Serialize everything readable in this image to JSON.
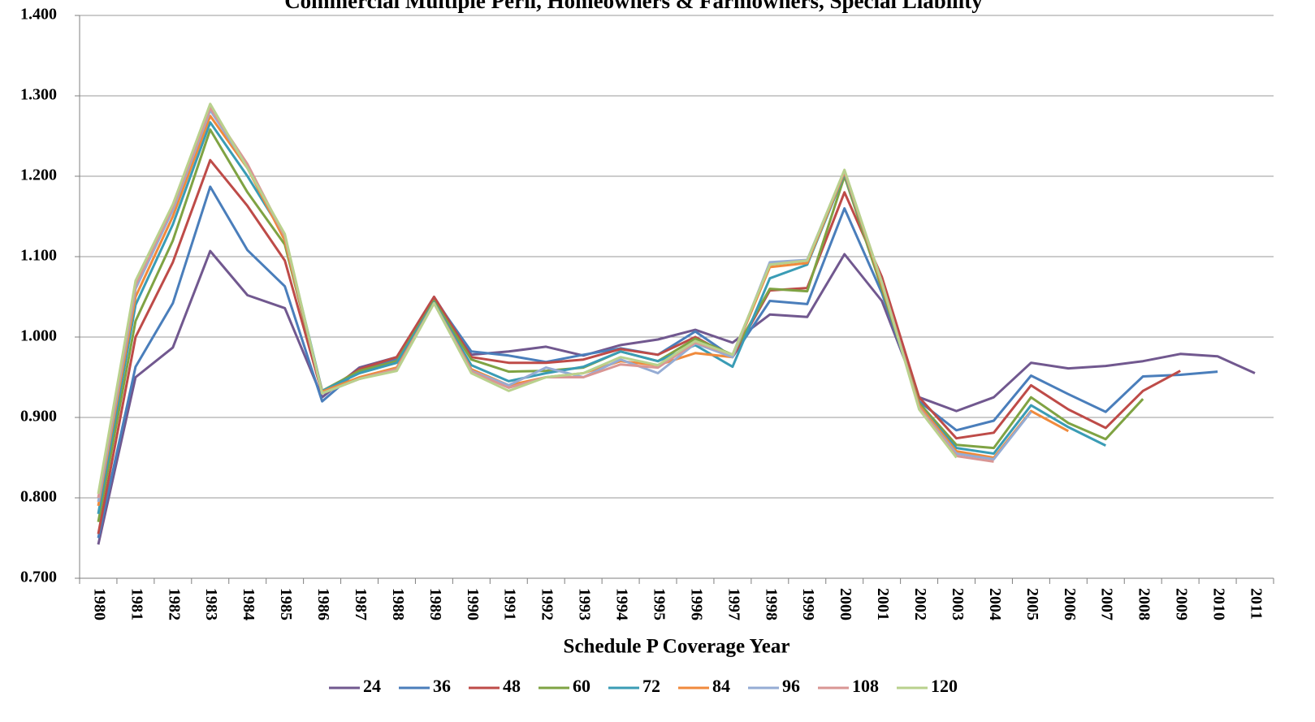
{
  "chart_data": {
    "type": "line",
    "title": "Commercial Multiple Peril, Homeowners & Farmowners, Special Liability",
    "x_label": "Schedule P Coverage Year",
    "categories": [
      "1980",
      "1981",
      "1982",
      "1983",
      "1984",
      "1985",
      "1986",
      "1987",
      "1988",
      "1989",
      "1990",
      "1991",
      "1992",
      "1993",
      "1994",
      "1995",
      "1996",
      "1997",
      "1998",
      "1999",
      "2000",
      "2001",
      "2002",
      "2003",
      "2004",
      "2005",
      "2006",
      "2007",
      "2008",
      "2009",
      "2010",
      "2011"
    ],
    "ylim": [
      0.7,
      1.4
    ],
    "yticks": [
      {
        "value": 0.7,
        "label": "0.700"
      },
      {
        "value": 0.8,
        "label": "0.800"
      },
      {
        "value": 0.9,
        "label": "0.900"
      },
      {
        "value": 1.0,
        "label": "1.000"
      },
      {
        "value": 1.1,
        "label": "1.100"
      },
      {
        "value": 1.2,
        "label": "1.200"
      },
      {
        "value": 1.3,
        "label": "1.300"
      },
      {
        "value": 1.4,
        "label": "1.400"
      }
    ],
    "grid": true,
    "legend": "bottom",
    "series": [
      {
        "name": "24",
        "color": "#71588f",
        "values": [
          0.742,
          0.95,
          0.987,
          1.107,
          1.052,
          1.036,
          0.925,
          0.962,
          0.975,
          1.05,
          0.978,
          0.982,
          0.988,
          0.977,
          0.99,
          0.997,
          1.009,
          0.993,
          1.028,
          1.025,
          1.103,
          1.045,
          0.925,
          0.908,
          0.925,
          0.968,
          0.961,
          0.964,
          0.97,
          0.979,
          0.976,
          0.955
        ]
      },
      {
        "name": "36",
        "color": "#4a7ebb",
        "values": [
          0.75,
          0.963,
          1.042,
          1.187,
          1.108,
          1.063,
          0.92,
          0.96,
          0.972,
          1.048,
          0.982,
          0.977,
          0.969,
          0.978,
          0.986,
          0.978,
          1.007,
          0.975,
          1.045,
          1.041,
          1.16,
          1.055,
          0.92,
          0.884,
          0.896,
          0.952,
          0.929,
          0.907,
          0.951,
          0.953,
          0.957,
          null
        ]
      },
      {
        "name": "48",
        "color": "#be4b48",
        "values": [
          0.755,
          1.0,
          1.093,
          1.22,
          1.163,
          1.095,
          0.93,
          0.96,
          0.975,
          1.05,
          0.975,
          0.968,
          0.968,
          0.972,
          0.985,
          0.978,
          1.0,
          0.975,
          1.058,
          1.061,
          1.18,
          1.075,
          0.925,
          0.874,
          0.881,
          0.94,
          0.91,
          0.887,
          0.933,
          0.958,
          null,
          null
        ]
      },
      {
        "name": "60",
        "color": "#7fa343",
        "values": [
          0.77,
          1.02,
          1.12,
          1.258,
          1.18,
          1.115,
          0.933,
          0.958,
          0.97,
          1.045,
          0.972,
          0.957,
          0.958,
          0.962,
          0.982,
          0.97,
          0.998,
          0.978,
          1.06,
          1.057,
          1.2,
          1.06,
          0.918,
          0.866,
          0.862,
          0.925,
          0.893,
          0.873,
          0.923,
          null,
          null,
          null
        ]
      },
      {
        "name": "72",
        "color": "#3a9cb5",
        "values": [
          0.78,
          1.04,
          1.14,
          1.267,
          1.2,
          1.125,
          0.933,
          0.955,
          0.968,
          1.043,
          0.965,
          0.945,
          0.955,
          0.963,
          0.982,
          0.97,
          0.99,
          0.963,
          1.073,
          1.09,
          1.203,
          1.065,
          0.915,
          0.862,
          0.855,
          0.915,
          0.888,
          0.865,
          null,
          null,
          null,
          null
        ]
      },
      {
        "name": "84",
        "color": "#f08a3c",
        "values": [
          0.79,
          1.05,
          1.15,
          1.275,
          1.21,
          1.12,
          0.932,
          0.95,
          0.962,
          1.042,
          0.96,
          0.94,
          0.95,
          0.955,
          0.97,
          0.965,
          0.98,
          0.975,
          1.087,
          1.092,
          1.205,
          1.065,
          0.915,
          0.858,
          0.85,
          0.908,
          0.883,
          null,
          null,
          null,
          null,
          null
        ]
      },
      {
        "name": "96",
        "color": "#95acd4",
        "values": [
          0.795,
          1.06,
          1.158,
          1.282,
          1.212,
          1.125,
          0.93,
          0.948,
          0.96,
          1.042,
          0.958,
          0.94,
          0.962,
          0.95,
          0.972,
          0.955,
          0.992,
          0.975,
          1.093,
          1.096,
          1.207,
          1.068,
          0.912,
          0.855,
          0.848,
          0.907,
          null,
          null,
          null,
          null,
          null,
          null
        ]
      },
      {
        "name": "108",
        "color": "#d99694",
        "values": [
          0.8,
          1.065,
          1.162,
          1.285,
          1.215,
          1.125,
          0.93,
          0.948,
          0.96,
          1.042,
          0.957,
          0.937,
          0.95,
          0.95,
          0.966,
          0.962,
          0.993,
          0.978,
          1.09,
          1.095,
          1.207,
          1.068,
          0.912,
          0.852,
          0.845,
          null,
          null,
          null,
          null,
          null,
          null,
          null
        ]
      },
      {
        "name": "120",
        "color": "#b9d18d",
        "values": [
          0.805,
          1.07,
          1.165,
          1.29,
          1.21,
          1.128,
          0.93,
          0.948,
          0.958,
          1.042,
          0.955,
          0.933,
          0.95,
          0.955,
          0.975,
          0.965,
          0.995,
          0.978,
          1.09,
          1.095,
          1.208,
          1.068,
          0.91,
          0.85,
          null,
          null,
          null,
          null,
          null,
          null,
          null,
          null
        ]
      }
    ]
  }
}
